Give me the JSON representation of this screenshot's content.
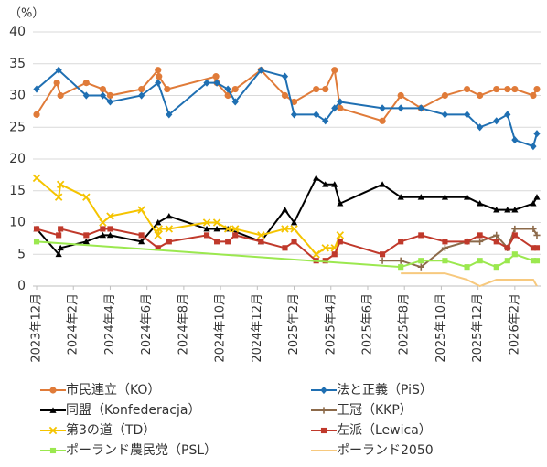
{
  "chart_data": {
    "type": "line",
    "y_label": "（%）",
    "xlim": [
      -0.2,
      27.4
    ],
    "xticks": [
      {
        "value": 0,
        "label": "2023年12月"
      },
      {
        "value": 2,
        "label": "2024年2月"
      },
      {
        "value": 4,
        "label": "2024年4月"
      },
      {
        "value": 6,
        "label": "2024年6月"
      },
      {
        "value": 8,
        "label": "2024年8月"
      },
      {
        "value": 10,
        "label": "2024年10月"
      },
      {
        "value": 12,
        "label": "2024年12月"
      },
      {
        "value": 14,
        "label": "2025年2月"
      },
      {
        "value": 16,
        "label": "2025年4月"
      },
      {
        "value": 18,
        "label": "2025年6月"
      },
      {
        "value": 20,
        "label": "2025年8月"
      },
      {
        "value": 22,
        "label": "2025年10月"
      },
      {
        "value": 24,
        "label": "2025年12月"
      },
      {
        "value": 26,
        "label": "2026年2月"
      }
    ],
    "ylim": [
      0,
      40
    ],
    "yticks": [
      0,
      5,
      10,
      15,
      20,
      25,
      30,
      35,
      40
    ],
    "grid": true,
    "series": [
      {
        "name": "市民連立（KO）",
        "color": "#e07b39",
        "marker": "circle",
        "x": [
          0,
          1.1,
          1.3,
          2.7,
          3.6,
          4.0,
          5.7,
          6.6,
          6.65,
          7.1,
          9.75,
          9.8,
          10.4,
          10.8,
          12.2,
          13.5,
          14.0,
          15.2,
          15.7,
          16.2,
          16.5,
          18.8,
          19.8,
          20.9,
          22.2,
          23.4,
          24.1,
          25.0,
          25.6,
          26.0,
          27.0,
          27.2
        ],
        "values": [
          27,
          32,
          30,
          32,
          31,
          30,
          31,
          34,
          33,
          31,
          33,
          32,
          30,
          31,
          34,
          30,
          29,
          31,
          31,
          34,
          28,
          26,
          30,
          28,
          30,
          31,
          30,
          31,
          31,
          31,
          30,
          31
        ]
      },
      {
        "name": "法と正義（PiS）",
        "color": "#1f6fb2",
        "marker": "diamond",
        "x": [
          0,
          1.2,
          2.7,
          3.6,
          4.0,
          5.7,
          6.6,
          7.2,
          9.25,
          9.8,
          10.4,
          10.8,
          12.2,
          13.5,
          14.0,
          15.2,
          15.7,
          16.2,
          16.5,
          18.8,
          19.8,
          20.9,
          22.2,
          23.4,
          24.1,
          25.0,
          25.6,
          26.0,
          27.0,
          27.2
        ],
        "values": [
          31,
          34,
          30,
          30,
          29,
          30,
          32,
          27,
          32,
          32,
          31,
          29,
          34,
          33,
          27,
          27,
          26,
          28,
          29,
          28,
          28,
          28,
          27,
          27,
          25,
          26,
          27,
          23,
          22,
          24
        ]
      },
      {
        "name": "同盟（Konfederacja）",
        "color": "#000000",
        "marker": "triangle",
        "x": [
          0,
          1.2,
          1.3,
          2.7,
          3.6,
          4.0,
          5.7,
          6.6,
          7.2,
          9.25,
          9.8,
          10.4,
          12.2,
          13.5,
          14.0,
          15.2,
          15.7,
          16.2,
          16.5,
          18.8,
          19.8,
          20.9,
          22.2,
          23.4,
          24.1,
          25.0,
          25.6,
          26.0,
          27.0,
          27.2
        ],
        "values": [
          9,
          5,
          6,
          7,
          8,
          8,
          7,
          10,
          11,
          9,
          9,
          9,
          7,
          12,
          10,
          17,
          16,
          16,
          13,
          16,
          14,
          14,
          14,
          14,
          13,
          12,
          12,
          12,
          13,
          14
        ]
      },
      {
        "name": "王冠（KKP）",
        "color": "#8c6a4a",
        "marker": "plus",
        "x": [
          18.8,
          19.8,
          20.9,
          22.2,
          23.4,
          24.1,
          25.0,
          25.6,
          26.0,
          27.0,
          27.2
        ],
        "values": [
          4,
          4,
          3,
          6,
          7,
          7,
          8,
          6,
          9,
          9,
          8
        ]
      },
      {
        "name": "第3の道（TD）",
        "color": "#f5c400",
        "marker": "cross",
        "x": [
          0,
          1.2,
          1.3,
          2.7,
          3.6,
          4.0,
          5.7,
          6.6,
          6.65,
          7.2,
          9.25,
          9.8,
          10.4,
          10.8,
          12.2,
          13.5,
          14.0,
          15.2,
          15.7,
          16.2,
          16.5
        ],
        "values": [
          17,
          14,
          16,
          14,
          10,
          11,
          12,
          8,
          9,
          9,
          10,
          10,
          9,
          9,
          8,
          9,
          9,
          5,
          6,
          6,
          8
        ]
      },
      {
        "name": "左派（Lewica）",
        "color": "#c0392b",
        "marker": "square",
        "x": [
          0,
          1.2,
          1.3,
          2.7,
          3.6,
          4.0,
          5.7,
          6.6,
          7.2,
          9.25,
          9.8,
          10.4,
          10.8,
          12.2,
          13.5,
          14.0,
          15.2,
          15.7,
          16.2,
          16.5,
          18.8,
          19.8,
          20.9,
          22.2,
          23.4,
          24.1,
          25.0,
          25.6,
          26.0,
          27.0,
          27.2
        ],
        "values": [
          9,
          8,
          9,
          8,
          9,
          9,
          8,
          6,
          7,
          8,
          7,
          7,
          8,
          7,
          6,
          7,
          4,
          4,
          5,
          7,
          5,
          7,
          8,
          7,
          7,
          8,
          7,
          6,
          8,
          6,
          6
        ]
      },
      {
        "name": "ポーランド農民党（PSL）",
        "color": "#9be84f",
        "marker": "square",
        "x": [
          0,
          19.8,
          20.9,
          22.2,
          23.4,
          24.1,
          25.0,
          25.6,
          26.0,
          27.0,
          27.2
        ],
        "values": [
          7,
          3,
          4,
          4,
          3,
          4,
          3,
          4,
          5,
          4,
          4
        ]
      },
      {
        "name": "ポーランド2050",
        "color": "#f7c97e",
        "x": [
          19.8,
          22.2,
          23.4,
          24.1,
          25.0,
          26.0,
          27.0,
          27.2
        ],
        "values": [
          2,
          2,
          1,
          0,
          1,
          1,
          1,
          0
        ]
      }
    ]
  }
}
